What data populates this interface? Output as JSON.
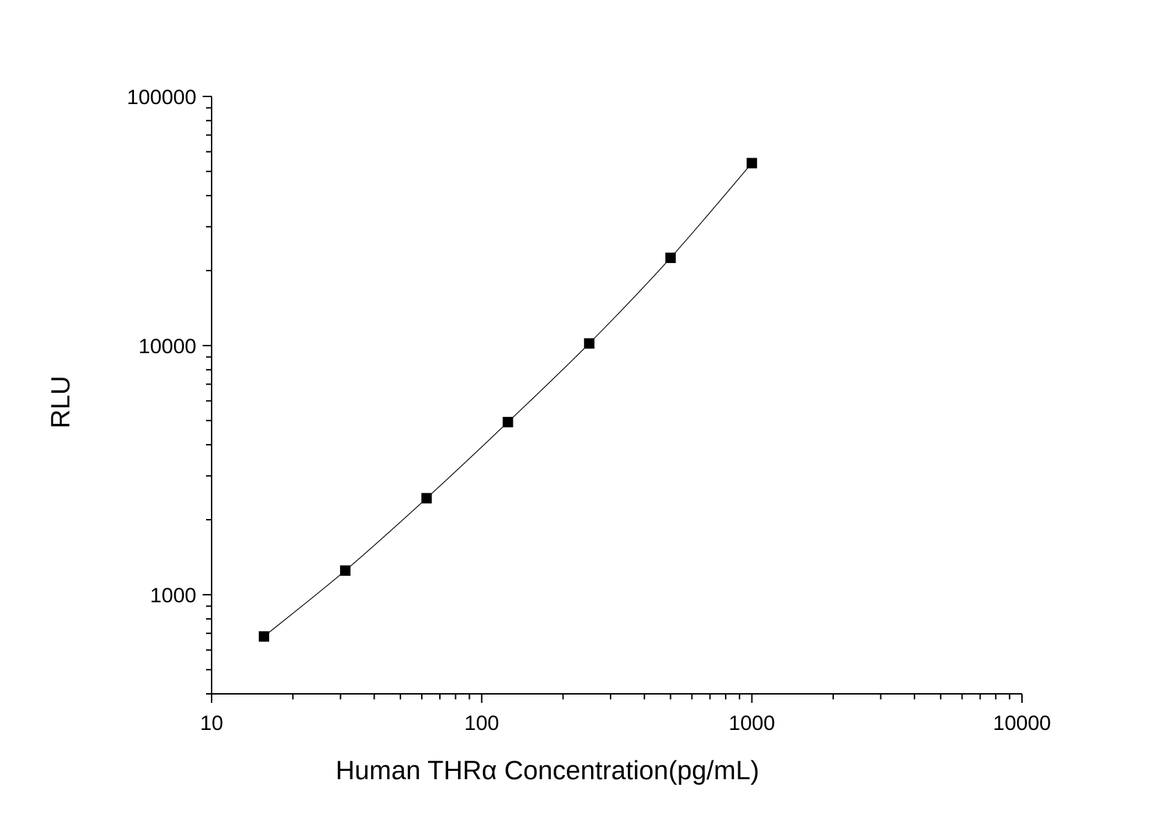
{
  "chart_data": {
    "type": "scatter",
    "title": "",
    "xlabel": "Human THRα  Concentration(pg/mL)",
    "ylabel": "RLU",
    "x_scale": "log",
    "y_scale": "log",
    "xlim": [
      10,
      10000
    ],
    "ylim": [
      400,
      100000
    ],
    "x_ticks": [
      10,
      100,
      1000,
      10000
    ],
    "x_tick_labels": [
      "10",
      "100",
      "1000",
      "10000"
    ],
    "y_ticks": [
      1000,
      10000,
      100000
    ],
    "y_tick_labels": [
      "1000",
      "10000",
      "100000"
    ],
    "grid": false,
    "legend": "none",
    "series": [
      {
        "marker": "square",
        "color": "#000000",
        "fit_line": true,
        "x": [
          15.625,
          31.25,
          62.5,
          125,
          250,
          500,
          1000
        ],
        "y": [
          680,
          1250,
          2440,
          4930,
          10200,
          22500,
          54000
        ]
      }
    ]
  }
}
